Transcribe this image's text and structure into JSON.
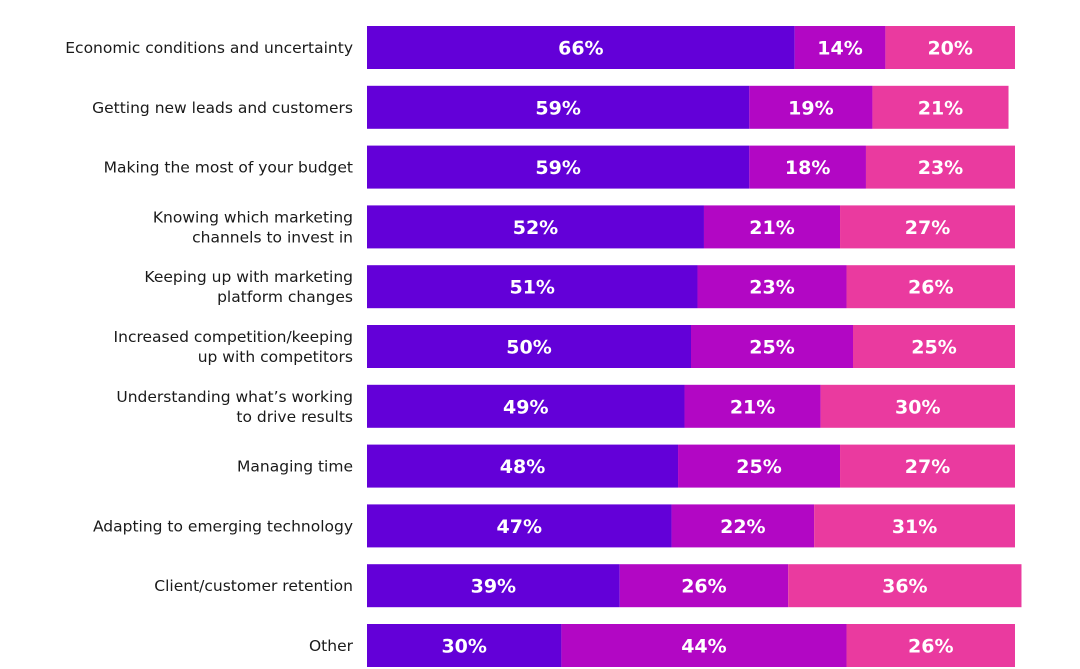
{
  "chart_data": {
    "type": "bar",
    "orientation": "horizontal",
    "stacked": true,
    "title": "",
    "xlabel": "",
    "ylabel": "",
    "xlim": [
      0,
      100
    ],
    "legend": "none",
    "grid": false,
    "value_suffix": "%",
    "colors": [
      "#6300d8",
      "#b207c4",
      "#ea3a9f"
    ],
    "categories": [
      [
        "Economic conditions and uncertainty"
      ],
      [
        "Getting new leads and customers"
      ],
      [
        "Making the most of your budget"
      ],
      [
        "Knowing which marketing",
        "channels to invest in"
      ],
      [
        "Keeping up with marketing",
        "platform changes"
      ],
      [
        "Increased competition/keeping",
        "up with competitors"
      ],
      [
        "Understanding what’s working",
        "to drive results"
      ],
      [
        "Managing time"
      ],
      [
        "Adapting to emerging technology"
      ],
      [
        "Client/customer retention"
      ],
      [
        "Other"
      ]
    ],
    "series": [
      {
        "name": "Segment 1",
        "values": [
          66,
          59,
          59,
          52,
          51,
          50,
          49,
          48,
          47,
          39,
          30
        ]
      },
      {
        "name": "Segment 2",
        "values": [
          14,
          19,
          18,
          21,
          23,
          25,
          21,
          25,
          22,
          26,
          44
        ]
      },
      {
        "name": "Segment 3",
        "values": [
          20,
          21,
          23,
          27,
          26,
          25,
          30,
          27,
          31,
          36,
          26
        ]
      }
    ]
  }
}
